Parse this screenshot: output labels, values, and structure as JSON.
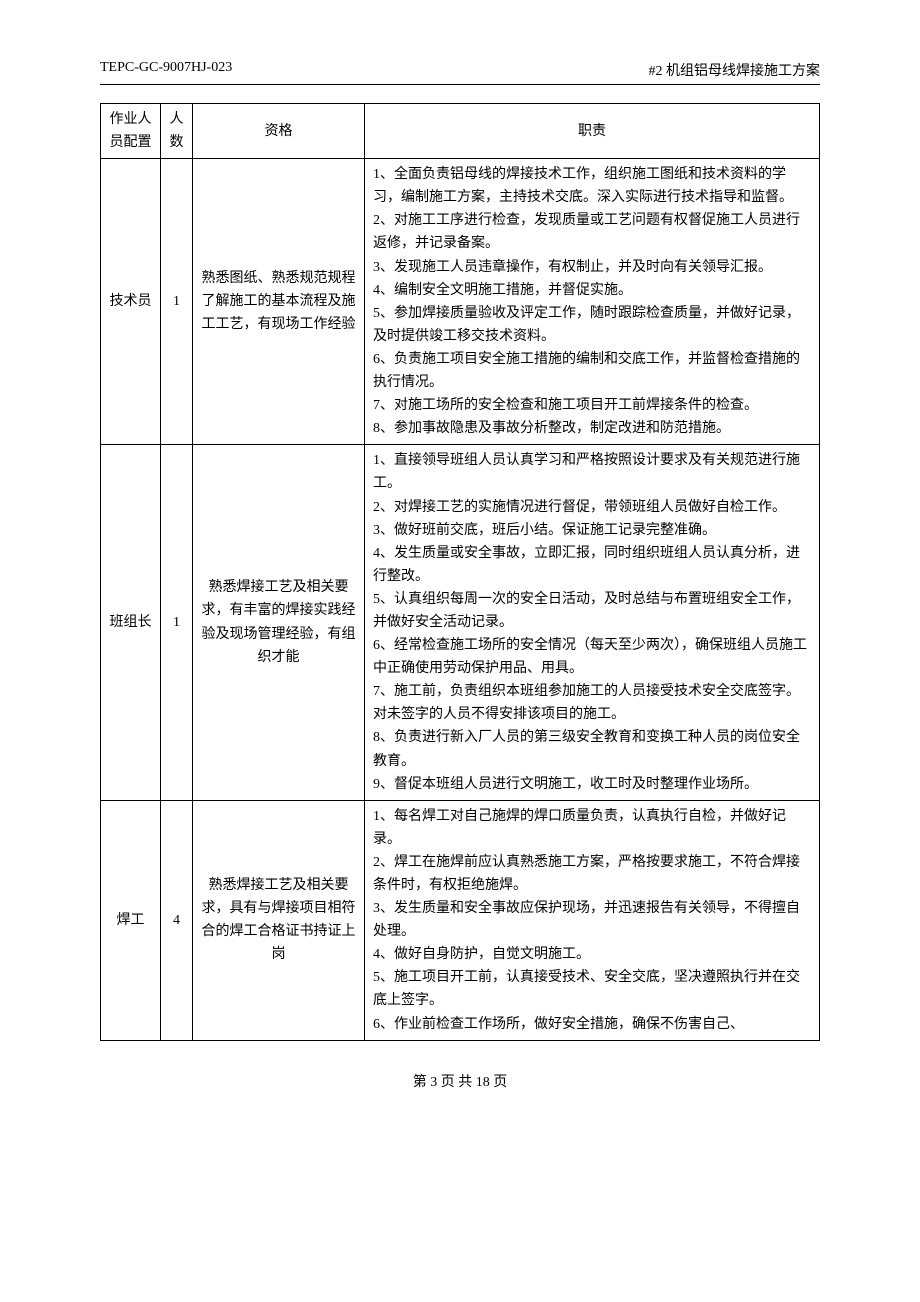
{
  "header": {
    "left": "TEPC-GC-9007HJ-023",
    "right": "#2 机组铝母线焊接施工方案"
  },
  "table": {
    "columns": [
      "作业人员配置",
      "人数",
      "资格",
      "职责"
    ],
    "rows": [
      {
        "role": "技术员",
        "count": "1",
        "qual": "熟悉图纸、熟悉规范规程了解施工的基本流程及施工工艺，有现场工作经验",
        "duties": [
          "1、全面负责铝母线的焊接技术工作，组织施工图纸和技术资料的学习，编制施工方案，主持技术交底。深入实际进行技术指导和监督。",
          "2、对施工工序进行检查，发现质量或工艺问题有权督促施工人员进行返修，并记录备案。",
          "3、发现施工人员违章操作，有权制止，并及时向有关领导汇报。",
          "4、编制安全文明施工措施，并督促实施。",
          "5、参加焊接质量验收及评定工作，随时跟踪检查质量，并做好记录，及时提供竣工移交技术资料。",
          "6、负责施工项目安全施工措施的编制和交底工作，并监督检查措施的执行情况。",
          "7、对施工场所的安全检查和施工项目开工前焊接条件的检查。",
          "8、参加事故隐患及事故分析整改，制定改进和防范措施。"
        ]
      },
      {
        "role": "班组长",
        "count": "1",
        "qual": "熟悉焊接工艺及相关要求，有丰富的焊接实践经验及现场管理经验，有组织才能",
        "duties": [
          "1、直接领导班组人员认真学习和严格按照设计要求及有关规范进行施工。",
          "2、对焊接工艺的实施情况进行督促，带领班组人员做好自检工作。",
          "3、做好班前交底，班后小结。保证施工记录完整准确。",
          "4、发生质量或安全事故，立即汇报，同时组织班组人员认真分析，进行整改。",
          "5、认真组织每周一次的安全日活动，及时总结与布置班组安全工作，并做好安全活动记录。",
          "6、经常检查施工场所的安全情况（每天至少两次），确保班组人员施工中正确使用劳动保护用品、用具。",
          "7、施工前，负责组织本班组参加施工的人员接受技术安全交底签字。对未签字的人员不得安排该项目的施工。",
          "8、负责进行新入厂人员的第三级安全教育和变换工种人员的岗位安全教育。",
          "9、督促本班组人员进行文明施工，收工时及时整理作业场所。"
        ]
      },
      {
        "role": "焊工",
        "count": "4",
        "qual": "熟悉焊接工艺及相关要求，具有与焊接项目相符合的焊工合格证书持证上岗",
        "duties": [
          "1、每名焊工对自己施焊的焊口质量负责，认真执行自检，并做好记录。",
          "2、焊工在施焊前应认真熟悉施工方案，严格按要求施工，不符合焊接条件时，有权拒绝施焊。",
          "3、发生质量和安全事故应保护现场，并迅速报告有关领导，不得擅自处理。",
          "4、做好自身防护，自觉文明施工。",
          "5、施工项目开工前，认真接受技术、安全交底，坚决遵照执行并在交底上签字。",
          "6、作业前检查工作场所，做好安全措施，确保不伤害自己、"
        ]
      }
    ]
  },
  "footer": {
    "text": "第 3 页 共 18 页"
  }
}
